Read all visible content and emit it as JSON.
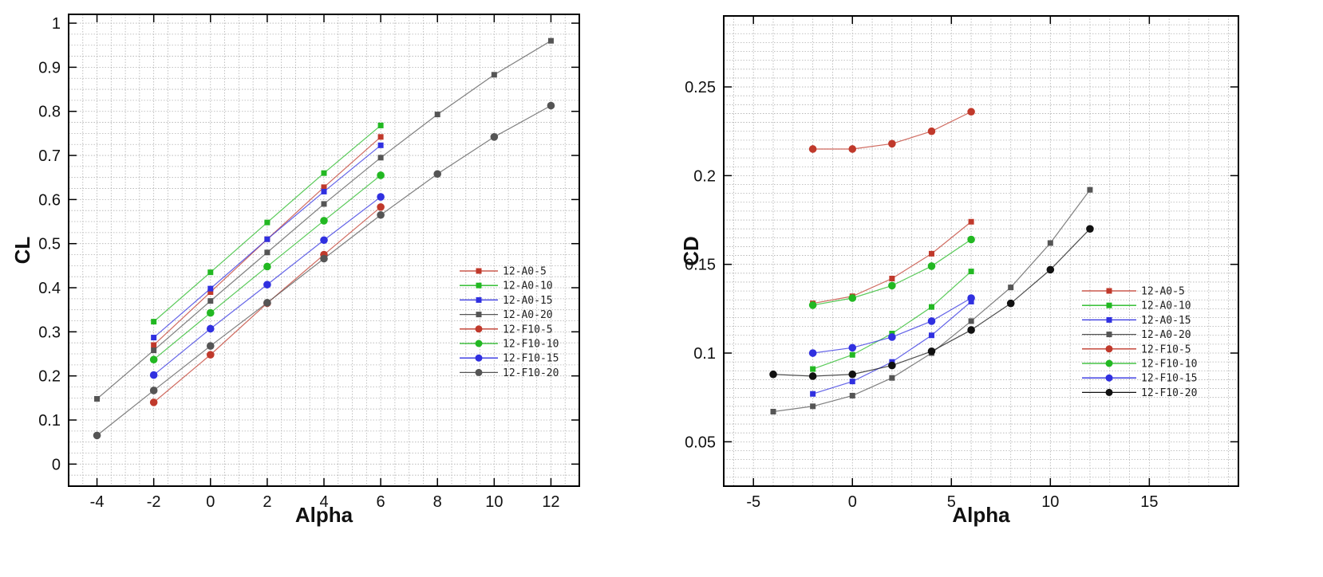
{
  "chart_data": [
    {
      "id": "cl",
      "type": "line",
      "xlabel": "Alpha",
      "ylabel": "CL",
      "xlim": [
        -5,
        13
      ],
      "ylim": [
        -0.05,
        1.02
      ],
      "xticks": [
        -4,
        -2,
        0,
        2,
        4,
        6,
        8,
        10,
        12
      ],
      "yticks": [
        0,
        0.1,
        0.2,
        0.3,
        0.4,
        0.5,
        0.6,
        0.7,
        0.8,
        0.9,
        1
      ],
      "ytick_labels": [
        "0",
        "0.1",
        "0.2",
        "0.3",
        "0.4",
        "0.5",
        "0.6",
        "0.7",
        "0.8",
        "0.9",
        "1"
      ],
      "xtick_labels": [
        "-4",
        "-2",
        "0",
        "2",
        "4",
        "6",
        "8",
        "10",
        "12"
      ],
      "legend_position": "right",
      "series": [
        {
          "name": "12-A0-5",
          "color": "#c0392b",
          "marker": "square",
          "x": [
            -2,
            0,
            2,
            4,
            6
          ],
          "y": [
            0.27,
            0.39,
            0.51,
            0.628,
            0.742
          ]
        },
        {
          "name": "12-A0-10",
          "color": "#22b822",
          "marker": "square",
          "x": [
            -2,
            0,
            2,
            4,
            6
          ],
          "y": [
            0.323,
            0.435,
            0.548,
            0.66,
            0.768
          ]
        },
        {
          "name": "12-A0-15",
          "color": "#3030e0",
          "marker": "square",
          "x": [
            -2,
            0,
            2,
            4,
            6
          ],
          "y": [
            0.287,
            0.398,
            0.51,
            0.618,
            0.723
          ]
        },
        {
          "name": "12-A0-20",
          "color": "#555555",
          "marker": "square",
          "x": [
            -4,
            -2,
            0,
            2,
            4,
            6,
            8,
            10,
            12
          ],
          "y": [
            0.148,
            0.258,
            0.37,
            0.48,
            0.59,
            0.695,
            0.793,
            0.883,
            0.96
          ]
        },
        {
          "name": "12-F10-5",
          "color": "#c0392b",
          "marker": "circle",
          "x": [
            -2,
            0,
            2,
            4,
            6
          ],
          "y": [
            0.14,
            0.248,
            0.365,
            0.475,
            0.583
          ]
        },
        {
          "name": "12-F10-10",
          "color": "#22b822",
          "marker": "circle",
          "x": [
            -2,
            0,
            2,
            4,
            6
          ],
          "y": [
            0.237,
            0.343,
            0.448,
            0.552,
            0.655
          ]
        },
        {
          "name": "12-F10-15",
          "color": "#3030e0",
          "marker": "circle",
          "x": [
            -2,
            0,
            2,
            4,
            6
          ],
          "y": [
            0.202,
            0.307,
            0.407,
            0.508,
            0.606
          ]
        },
        {
          "name": "12-F10-20",
          "color": "#555555",
          "marker": "circle",
          "x": [
            -4,
            -2,
            0,
            2,
            4,
            6,
            8,
            10,
            12
          ],
          "y": [
            0.065,
            0.167,
            0.268,
            0.366,
            0.466,
            0.565,
            0.658,
            0.742,
            0.813
          ]
        }
      ]
    },
    {
      "id": "cd",
      "type": "line",
      "xlabel": "Alpha",
      "ylabel": "CD",
      "xlim": [
        -6.5,
        19.5
      ],
      "ylim": [
        0.025,
        0.29
      ],
      "xticks": [
        -5,
        0,
        5,
        10,
        15
      ],
      "yticks": [
        0.05,
        0.1,
        0.15,
        0.2,
        0.25
      ],
      "ytick_labels": [
        "0.05",
        "0.1",
        "0.15",
        "0.2",
        "0.25"
      ],
      "xtick_labels": [
        "-5",
        "0",
        "5",
        "10",
        "15"
      ],
      "legend_position": "right",
      "series": [
        {
          "name": "12-A0-5",
          "color": "#c0392b",
          "marker": "square",
          "x": [
            -2,
            0,
            2,
            4,
            6
          ],
          "y": [
            0.128,
            0.132,
            0.142,
            0.156,
            0.174
          ]
        },
        {
          "name": "12-A0-10",
          "color": "#22b822",
          "marker": "square",
          "x": [
            -2,
            0,
            2,
            4,
            6
          ],
          "y": [
            0.091,
            0.099,
            0.111,
            0.126,
            0.146
          ]
        },
        {
          "name": "12-A0-15",
          "color": "#3030e0",
          "marker": "square",
          "x": [
            -2,
            0,
            2,
            4,
            6
          ],
          "y": [
            0.077,
            0.084,
            0.095,
            0.11,
            0.129
          ]
        },
        {
          "name": "12-A0-20",
          "color": "#555555",
          "marker": "square",
          "x": [
            -4,
            -2,
            0,
            2,
            4,
            6,
            8,
            10,
            12
          ],
          "y": [
            0.067,
            0.07,
            0.076,
            0.086,
            0.1,
            0.118,
            0.137,
            0.162,
            0.192
          ]
        },
        {
          "name": "12-F10-5",
          "color": "#c0392b",
          "marker": "circle",
          "x": [
            -2,
            0,
            2,
            4,
            6
          ],
          "y": [
            0.215,
            0.215,
            0.218,
            0.225,
            0.236
          ]
        },
        {
          "name": "12-F10-10",
          "color": "#22b822",
          "marker": "circle",
          "x": [
            -2,
            0,
            2,
            4,
            6
          ],
          "y": [
            0.127,
            0.131,
            0.138,
            0.149,
            0.164
          ]
        },
        {
          "name": "12-F10-15",
          "color": "#3030e0",
          "marker": "circle",
          "x": [
            -2,
            0,
            2,
            4,
            6
          ],
          "y": [
            0.1,
            0.103,
            0.109,
            0.118,
            0.131
          ]
        },
        {
          "name": "12-F10-20",
          "color": "#111111",
          "marker": "circle",
          "x": [
            -4,
            -2,
            0,
            2,
            4,
            6,
            8,
            10,
            12
          ],
          "y": [
            0.088,
            0.087,
            0.088,
            0.093,
            0.101,
            0.113,
            0.128,
            0.147,
            0.17
          ]
        }
      ]
    }
  ]
}
